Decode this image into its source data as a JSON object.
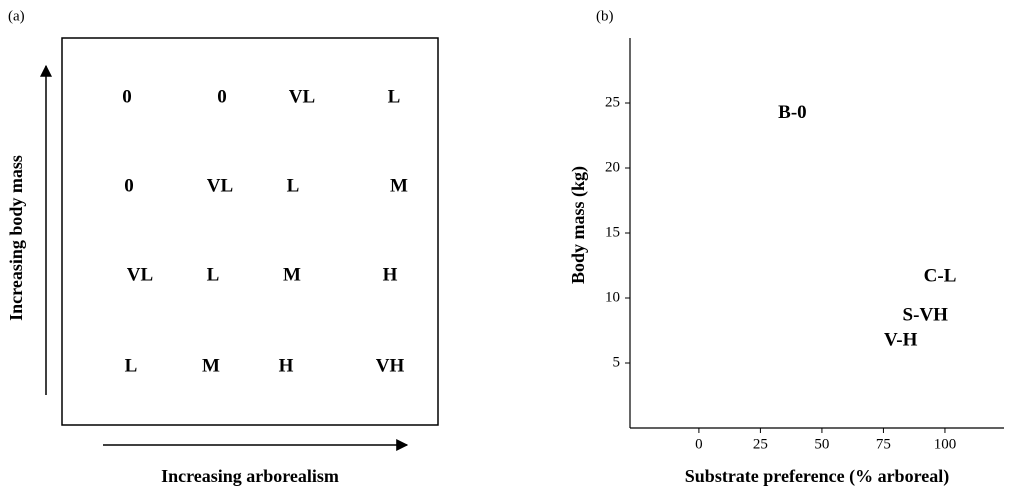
{
  "chart_data": [
    {
      "type": "grid",
      "panel_label": "(a)",
      "x_label": "Increasing arborealism",
      "y_label": "Increasing body mass",
      "rows": [
        [
          "0",
          "0",
          "VL",
          "L"
        ],
        [
          "0",
          "VL",
          "L",
          "M"
        ],
        [
          "VL",
          "L",
          "M",
          "H"
        ],
        [
          "L",
          "M",
          "H",
          "VH"
        ]
      ]
    },
    {
      "type": "scatter",
      "panel_label": "(b)",
      "x_label": "Substrate preference (% arboreal)",
      "y_label": "Body mass (kg)",
      "labels": [
        "B-0",
        "C-L",
        "S-VH",
        "V-H"
      ],
      "x": [
        38,
        98,
        92,
        82
      ],
      "values": [
        24.2,
        11.6,
        8.6,
        6.7
      ],
      "xlim": [
        -28,
        124
      ],
      "ylim": [
        0,
        30
      ],
      "xticks": [
        0,
        25,
        50,
        75,
        100
      ],
      "yticks": [
        5,
        10,
        15,
        20,
        25
      ]
    }
  ]
}
